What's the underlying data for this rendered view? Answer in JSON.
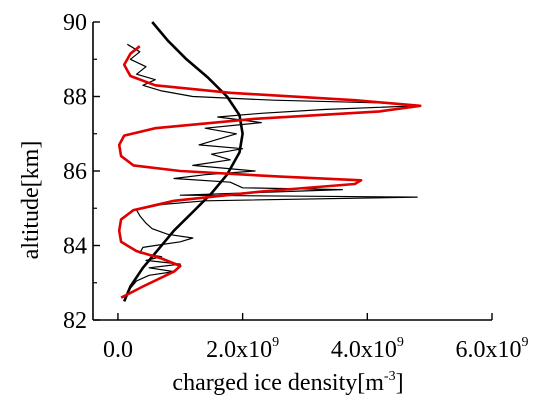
{
  "chart_data": {
    "type": "line",
    "title": "",
    "xlabel": "charged ice density[m",
    "xlabel_sup": "-3",
    "xlabel_close": "]",
    "ylabel": "altitude[km]",
    "xlim": [
      -400000000.0,
      6000000000.0
    ],
    "ylim": [
      82,
      90
    ],
    "x_ticks": [
      {
        "value": 0,
        "mant": "0.0",
        "exp": ""
      },
      {
        "value": 2000000000.0,
        "mant": "2.0x10",
        "exp": "9"
      },
      {
        "value": 4000000000.0,
        "mant": "4.0x10",
        "exp": "9"
      },
      {
        "value": 6000000000.0,
        "mant": "6.0x10",
        "exp": "9"
      }
    ],
    "y_ticks": [
      {
        "value": 82,
        "label": "82"
      },
      {
        "value": 84,
        "label": "84"
      },
      {
        "value": 86,
        "label": "86"
      },
      {
        "value": 88,
        "label": "88"
      },
      {
        "value": 90,
        "label": "90"
      }
    ],
    "grid": false,
    "legend": "none",
    "series": [
      {
        "color": "#000000",
        "kind": "measured",
        "points": [
          [
            120000000.0,
            82.6
          ],
          [
            200000000.0,
            82.85
          ],
          [
            300000000.0,
            83.05
          ],
          [
            500000000.0,
            83.2
          ],
          [
            900000000.0,
            83.3
          ],
          [
            500000000.0,
            83.4
          ],
          [
            1000000000.0,
            83.5
          ],
          [
            450000000.0,
            83.6
          ],
          [
            700000000.0,
            83.7
          ],
          [
            350000000.0,
            83.8
          ],
          [
            400000000.0,
            83.95
          ],
          [
            600000000.0,
            84.0
          ],
          [
            1000000000.0,
            84.1
          ],
          [
            1200000000.0,
            84.2
          ],
          [
            800000000.0,
            84.3
          ],
          [
            550000000.0,
            84.45
          ],
          [
            450000000.0,
            84.6
          ],
          [
            350000000.0,
            84.8
          ],
          [
            300000000.0,
            84.95
          ],
          [
            700000000.0,
            85.1
          ],
          [
            1400000000.0,
            85.2
          ],
          [
            4800000000.0,
            85.3
          ],
          [
            1000000000.0,
            85.35
          ],
          [
            3600000000.0,
            85.5
          ],
          [
            2000000000.0,
            85.55
          ],
          [
            1800000000.0,
            85.7
          ],
          [
            900000000.0,
            85.8
          ],
          [
            1400000000.0,
            85.9
          ],
          [
            2200000000.0,
            86.0
          ],
          [
            1200000000.0,
            86.15
          ],
          [
            1800000000.0,
            86.3
          ],
          [
            1500000000.0,
            86.45
          ],
          [
            2000000000.0,
            86.6
          ],
          [
            1300000000.0,
            86.7
          ],
          [
            1600000000.0,
            86.85
          ],
          [
            1900000000.0,
            87.0
          ],
          [
            1400000000.0,
            87.15
          ],
          [
            2300000000.0,
            87.3
          ],
          [
            1600000000.0,
            87.45
          ],
          [
            2300000000.0,
            87.55
          ],
          [
            3300000000.0,
            87.65
          ],
          [
            4800000000.0,
            87.75
          ],
          [
            4400000000.0,
            87.82
          ],
          [
            2500000000.0,
            87.9
          ],
          [
            1200000000.0,
            88.0
          ],
          [
            700000000.0,
            88.15
          ],
          [
            400000000.0,
            88.3
          ],
          [
            600000000.0,
            88.45
          ],
          [
            300000000.0,
            88.6
          ],
          [
            450000000.0,
            88.8
          ],
          [
            200000000.0,
            89.0
          ],
          [
            350000000.0,
            89.2
          ],
          [
            150000000.0,
            89.4
          ]
        ]
      },
      {
        "color": "#000000",
        "kind": "smooth",
        "points": [
          [
            100000000.0,
            82.5
          ],
          [
            200000000.0,
            82.9
          ],
          [
            400000000.0,
            83.4
          ],
          [
            650000000.0,
            83.9
          ],
          [
            900000000.0,
            84.4
          ],
          [
            1200000000.0,
            84.9
          ],
          [
            1500000000.0,
            85.4
          ],
          [
            1750000000.0,
            85.9
          ],
          [
            1950000000.0,
            86.5
          ],
          [
            2000000000.0,
            87.0
          ],
          [
            1950000000.0,
            87.5
          ],
          [
            1750000000.0,
            88.0
          ],
          [
            1450000000.0,
            88.5
          ],
          [
            1100000000.0,
            89.0
          ],
          [
            800000000.0,
            89.5
          ],
          [
            550000000.0,
            90.0
          ]
        ]
      },
      {
        "color": "#e00000",
        "kind": "fit",
        "points": [
          [
            50000000.0,
            82.6
          ],
          [
            400000000.0,
            82.9
          ],
          [
            900000000.0,
            83.3
          ],
          [
            1000000000.0,
            83.45
          ],
          [
            700000000.0,
            83.65
          ],
          [
            300000000.0,
            83.85
          ],
          [
            50000000.0,
            84.1
          ],
          [
            20000000.0,
            84.4
          ],
          [
            50000000.0,
            84.7
          ],
          [
            250000000.0,
            84.95
          ],
          [
            900000000.0,
            85.2
          ],
          [
            2300000000.0,
            85.45
          ],
          [
            3800000000.0,
            85.65
          ],
          [
            3900000000.0,
            85.75
          ],
          [
            2600000000.0,
            85.85
          ],
          [
            1000000000.0,
            86.0
          ],
          [
            250000000.0,
            86.15
          ],
          [
            50000000.0,
            86.4
          ],
          [
            20000000.0,
            86.7
          ],
          [
            100000000.0,
            86.95
          ],
          [
            600000000.0,
            87.15
          ],
          [
            2200000000.0,
            87.4
          ],
          [
            4200000000.0,
            87.6
          ],
          [
            4850000000.0,
            87.75
          ],
          [
            3800000000.0,
            87.9
          ],
          [
            1800000000.0,
            88.1
          ],
          [
            600000000.0,
            88.3
          ],
          [
            200000000.0,
            88.55
          ],
          [
            100000000.0,
            88.85
          ],
          [
            200000000.0,
            89.15
          ],
          [
            350000000.0,
            89.35
          ]
        ]
      }
    ]
  }
}
